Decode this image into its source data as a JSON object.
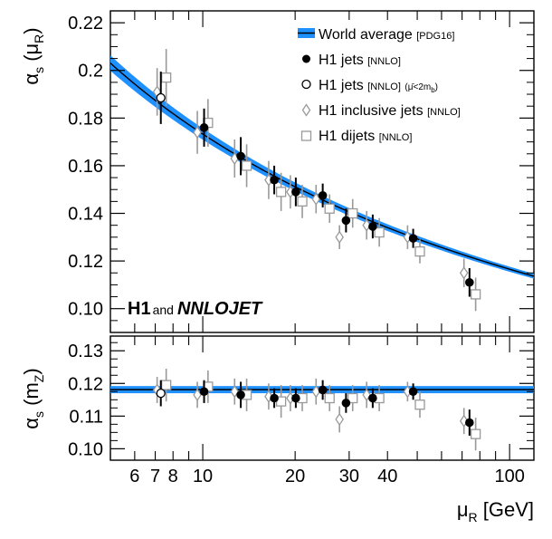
{
  "chart_data": [
    {
      "panel": "upper",
      "type": "scatter",
      "ylabel": {
        "main": "α",
        "sub1": "s",
        "open": " (μ",
        "sub2": "R",
        "close": ")"
      },
      "ylim": [
        0.09,
        0.225
      ],
      "xscale": "log",
      "xlim": [
        5.0,
        120
      ],
      "yticks": [
        0.1,
        0.12,
        0.14,
        0.16,
        0.18,
        0.2,
        0.22
      ],
      "ytick_labels": [
        "0.10",
        "0.12",
        "0.14",
        "0.16",
        "0.18",
        "0.2",
        "0.22"
      ],
      "annotation": {
        "h1": "H1",
        "and": "and",
        "nnlojet": "NNLOJET"
      },
      "legend": {
        "placement": "top-right",
        "entries": [
          {
            "key": "world",
            "text": "World average",
            "small": "[PDG16]"
          },
          {
            "key": "jets",
            "text": "H1 jets",
            "small": "[NNLO]"
          },
          {
            "key": "jets_low",
            "text": "H1 jets",
            "small": "[NNLO]",
            "extra": "(μ̄<2m",
            "extra_sub": "b",
            "extra_close": ")"
          },
          {
            "key": "inclusive",
            "text": "H1 inclusive jets",
            "small": "[NNLO]"
          },
          {
            "key": "dijets",
            "text": "H1 dijets",
            "small": "[NNLO]"
          }
        ]
      },
      "world_average": {
        "alpha_s_mz": 0.1181,
        "uncertainty": 0.0011,
        "mz": 91.19,
        "color": "#1e90ff",
        "line_color": "#000000"
      },
      "series": [
        {
          "name": "H1 jets",
          "marker": "filled-circle",
          "points": [
            {
              "x": 10.1,
              "y": 0.176,
              "err": 0.008
            },
            {
              "x": 13.3,
              "y": 0.164,
              "err": 0.008
            },
            {
              "x": 17.1,
              "y": 0.154,
              "err": 0.006
            },
            {
              "x": 20.1,
              "y": 0.149,
              "err": 0.006
            },
            {
              "x": 24.6,
              "y": 0.1475,
              "err": 0.005
            },
            {
              "x": 29.3,
              "y": 0.137,
              "err": 0.005
            },
            {
              "x": 35.8,
              "y": 0.1345,
              "err": 0.005
            },
            {
              "x": 48.5,
              "y": 0.1295,
              "err": 0.004
            },
            {
              "x": 74.0,
              "y": 0.111,
              "err": 0.006
            }
          ]
        },
        {
          "name": "H1 jets (μ̄<2mb)",
          "marker": "open-circle",
          "points": [
            {
              "x": 7.3,
              "y": 0.1885,
              "err": 0.011
            }
          ]
        },
        {
          "name": "H1 inclusive jets",
          "marker": "open-diamond",
          "points": [
            {
              "x": 7.1,
              "y": 0.191,
              "err": 0.01
            },
            {
              "x": 9.6,
              "y": 0.174,
              "err": 0.009
            },
            {
              "x": 12.7,
              "y": 0.163,
              "err": 0.008
            },
            {
              "x": 16.4,
              "y": 0.154,
              "err": 0.008
            },
            {
              "x": 19.3,
              "y": 0.149,
              "err": 0.007
            },
            {
              "x": 23.4,
              "y": 0.146,
              "err": 0.006
            },
            {
              "x": 27.9,
              "y": 0.13,
              "err": 0.005
            },
            {
              "x": 34.2,
              "y": 0.135,
              "err": 0.006
            },
            {
              "x": 46.5,
              "y": 0.13,
              "err": 0.005
            },
            {
              "x": 71.0,
              "y": 0.115,
              "err": 0.006
            }
          ]
        },
        {
          "name": "H1 dijets",
          "marker": "open-square",
          "points": [
            {
              "x": 7.6,
              "y": 0.197,
              "err": 0.012
            },
            {
              "x": 10.4,
              "y": 0.178,
              "err": 0.01
            },
            {
              "x": 13.9,
              "y": 0.16,
              "err": 0.009
            },
            {
              "x": 18.0,
              "y": 0.149,
              "err": 0.008
            },
            {
              "x": 21.1,
              "y": 0.145,
              "err": 0.007
            },
            {
              "x": 25.9,
              "y": 0.142,
              "err": 0.006
            },
            {
              "x": 30.8,
              "y": 0.14,
              "err": 0.006
            },
            {
              "x": 37.6,
              "y": 0.132,
              "err": 0.006
            },
            {
              "x": 51.0,
              "y": 0.124,
              "err": 0.005
            },
            {
              "x": 77.5,
              "y": 0.106,
              "err": 0.007
            }
          ]
        }
      ]
    },
    {
      "panel": "lower",
      "type": "scatter",
      "ylabel": {
        "main": "α",
        "sub1": "s",
        "open": " (m",
        "sub2": "Z",
        "close": ")"
      },
      "xlabel": {
        "main": "μ",
        "sub": "R",
        "unit": " [GeV]"
      },
      "ylim": [
        0.0965,
        0.1345
      ],
      "yticks": [
        0.1,
        0.11,
        0.12,
        0.13
      ],
      "ytick_labels": [
        "0.10",
        "0.11",
        "0.12",
        "0.13"
      ],
      "xticks": [
        6,
        7,
        8,
        10,
        20,
        30,
        40,
        100
      ],
      "xtick_labels": [
        "6",
        "7",
        "8",
        "10",
        "20",
        "30",
        "40",
        "100"
      ],
      "world_average": {
        "value": 0.1181,
        "uncertainty": 0.0011,
        "color": "#1e90ff",
        "line_color": "#000000"
      },
      "series": [
        {
          "name": "H1 jets",
          "marker": "filled-circle",
          "points": [
            {
              "x": 10.1,
              "y": 0.1175,
              "err": 0.0035
            },
            {
              "x": 13.3,
              "y": 0.1165,
              "err": 0.004
            },
            {
              "x": 17.1,
              "y": 0.1155,
              "err": 0.003
            },
            {
              "x": 20.1,
              "y": 0.1155,
              "err": 0.003
            },
            {
              "x": 24.6,
              "y": 0.118,
              "err": 0.003
            },
            {
              "x": 29.3,
              "y": 0.114,
              "err": 0.003
            },
            {
              "x": 35.8,
              "y": 0.1155,
              "err": 0.003
            },
            {
              "x": 48.5,
              "y": 0.1175,
              "err": 0.0025
            },
            {
              "x": 74.0,
              "y": 0.108,
              "err": 0.004
            }
          ]
        },
        {
          "name": "H1 jets (μ̄<2mb)",
          "marker": "open-circle",
          "points": [
            {
              "x": 7.3,
              "y": 0.117,
              "err": 0.004
            }
          ]
        },
        {
          "name": "H1 inclusive jets",
          "marker": "open-diamond",
          "points": [
            {
              "x": 7.1,
              "y": 0.118,
              "err": 0.004
            },
            {
              "x": 9.6,
              "y": 0.1165,
              "err": 0.004
            },
            {
              "x": 12.7,
              "y": 0.1175,
              "err": 0.004
            },
            {
              "x": 16.4,
              "y": 0.116,
              "err": 0.004
            },
            {
              "x": 19.3,
              "y": 0.1155,
              "err": 0.004
            },
            {
              "x": 23.4,
              "y": 0.1175,
              "err": 0.004
            },
            {
              "x": 27.9,
              "y": 0.109,
              "err": 0.004
            },
            {
              "x": 34.2,
              "y": 0.1165,
              "err": 0.004
            },
            {
              "x": 46.5,
              "y": 0.1175,
              "err": 0.003
            },
            {
              "x": 71.0,
              "y": 0.1085,
              "err": 0.004
            }
          ]
        },
        {
          "name": "H1 dijets",
          "marker": "open-square",
          "points": [
            {
              "x": 7.6,
              "y": 0.1195,
              "err": 0.005
            },
            {
              "x": 10.4,
              "y": 0.119,
              "err": 0.005
            },
            {
              "x": 13.9,
              "y": 0.1165,
              "err": 0.005
            },
            {
              "x": 18.0,
              "y": 0.1145,
              "err": 0.005
            },
            {
              "x": 21.1,
              "y": 0.1155,
              "err": 0.004
            },
            {
              "x": 25.9,
              "y": 0.1155,
              "err": 0.004
            },
            {
              "x": 30.8,
              "y": 0.1155,
              "err": 0.004
            },
            {
              "x": 37.6,
              "y": 0.1155,
              "err": 0.004
            },
            {
              "x": 51.0,
              "y": 0.1135,
              "err": 0.004
            },
            {
              "x": 77.5,
              "y": 0.1045,
              "err": 0.005
            }
          ]
        }
      ]
    }
  ]
}
